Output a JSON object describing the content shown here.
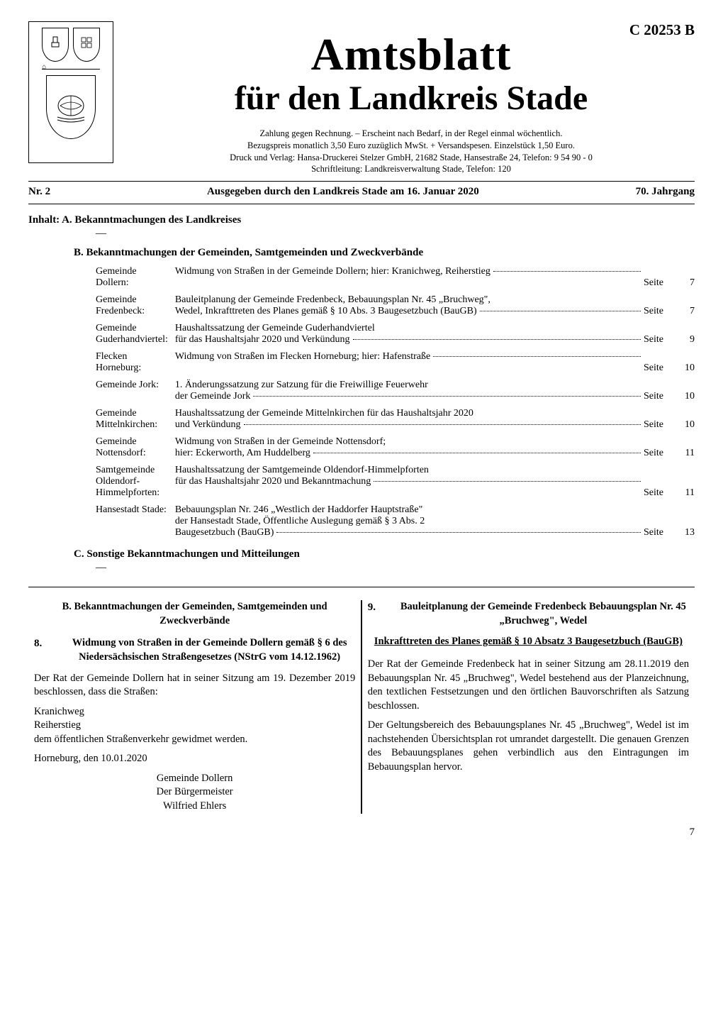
{
  "code": "C 20253 B",
  "masthead": "Amtsblatt",
  "masthead_sub": "für den Landkreis Stade",
  "pub_info": [
    "Zahlung gegen Rechnung. – Erscheint nach Bedarf, in der Regel einmal wöchentlich.",
    "Bezugspreis monatlich 3,50 Euro zuzüglich MwSt. + Versandspesen. Einzelstück 1,50 Euro.",
    "Druck und Verlag: Hansa-Druckerei Stelzer GmbH, 21682 Stade, Hansestraße 24, Telefon: 9 54 90 - 0",
    "Schriftleitung: Landkreisverwaltung Stade, Telefon: 120"
  ],
  "issue": {
    "nr": "Nr. 2",
    "center": "Ausgegeben durch den Landkreis Stade am 16. Januar 2020",
    "jahrgang": "70. Jahrgang"
  },
  "contents_heading": "Inhalt: A. Bekanntmachungen des Landkreises",
  "dash": "––",
  "section_b_heading": "B. Bekanntmachungen der Gemeinden, Samtgemeinden und Zweckverbände",
  "seite_label": "Seite",
  "toc": [
    {
      "left": "Gemeinde Dollern:",
      "text": "Widmung von Straßen in der Gemeinde Dollern; hier: Kranichweg, Reiherstieg",
      "page": "7"
    },
    {
      "left": "Gemeinde Fredenbeck:",
      "text_lines": [
        "Bauleitplanung der Gemeinde Fredenbeck, Bebauungsplan Nr. 45 „Bruchweg\",",
        "Wedel, Inkrafttreten des Planes gemäß § 10 Abs. 3 Baugesetzbuch (BauGB)"
      ],
      "page": "7"
    },
    {
      "left": "Gemeinde Guderhandviertel:",
      "text_lines": [
        "Haushaltssatzung der Gemeinde Guderhandviertel",
        "für das Haushaltsjahr 2020 und Verkündung"
      ],
      "page": "9"
    },
    {
      "left": "Flecken Horneburg:",
      "text": "Widmung von Straßen im Flecken Horneburg; hier: Hafenstraße",
      "page": "10"
    },
    {
      "left": "Gemeinde Jork:",
      "text_lines": [
        "1. Änderungssatzung zur Satzung für die Freiwillige Feuerwehr",
        "der Gemeinde Jork"
      ],
      "page": "10"
    },
    {
      "left": "Gemeinde Mittelnkirchen:",
      "text_lines": [
        "Haushaltssatzung der Gemeinde Mittelnkirchen für das Haushaltsjahr 2020",
        "und Verkündung"
      ],
      "page": "10"
    },
    {
      "left": "Gemeinde Nottensdorf:",
      "text_lines": [
        "Widmung von Straßen in der Gemeinde Nottensdorf;",
        "hier: Eckerworth, Am Huddelberg"
      ],
      "page": "11"
    },
    {
      "left": "Samtgemeinde Oldendorf-Himmelpforten:",
      "text_lines": [
        "Haushaltssatzung der Samtgemeinde Oldendorf-Himmelpforten",
        "für das Haushaltsjahr 2020 und Bekanntmachung"
      ],
      "page": "11"
    },
    {
      "left": "Hansestadt Stade:",
      "text_lines": [
        "Bebauungsplan Nr. 246 „Westlich der Haddorfer Hauptstraße\"",
        "der Hansestadt Stade, Öffentliche Auslegung gemäß § 3 Abs. 2",
        "Baugesetzbuch (BauGB)"
      ],
      "page": "13"
    }
  ],
  "section_c_heading": "C. Sonstige Bekanntmachungen und Mitteilungen",
  "left_col": {
    "heading": "B. Bekanntmachungen der Gemeinden, Samtgemeinden und Zweckverbände",
    "item_num": "8.",
    "item_title": "Widmung von Straßen in der Gemeinde Dollern gemäß § 6 des Niedersächsischen Straßengesetzes (NStrG vom 14.12.1962)",
    "paras": [
      "Der Rat der Gemeinde Dollern hat in seiner Sitzung am 19. Dezember 2019 beschlossen, dass die Straßen:",
      "Kranichweg",
      "Reiherstieg",
      "dem öffentlichen Straßenverkehr gewidmet werden."
    ],
    "date_line": "Horneburg, den 10.01.2020",
    "sig": [
      "Gemeinde Dollern",
      "Der Bürgermeister",
      "Wilfried Ehlers"
    ]
  },
  "right_col": {
    "item_num": "9.",
    "item_title": "Bauleitplanung der Gemeinde Fredenbeck Bebauungsplan Nr. 45 „Bruchweg\", Wedel",
    "sub_heading": "Inkrafttreten des Planes gemäß § 10 Absatz 3 Baugesetzbuch (BauGB)",
    "paras": [
      "Der Rat der Gemeinde Fredenbeck hat in seiner Sitzung am 28.11.2019 den Bebauungsplan Nr. 45 „Bruchweg\", Wedel bestehend aus der Planzeichnung, den textlichen Festsetzungen und den örtlichen Bauvorschriften als Satzung beschlossen.",
      "Der Geltungsbereich des Bebauungsplanes Nr. 45 „Bruchweg\", Wedel ist im nachstehenden Übersichtsplan rot umrandet dargestellt. Die genauen Grenzen des Bebauungsplanes gehen verbindlich aus den Eintragungen im Bebauungsplan hervor."
    ]
  },
  "page_number": "7"
}
